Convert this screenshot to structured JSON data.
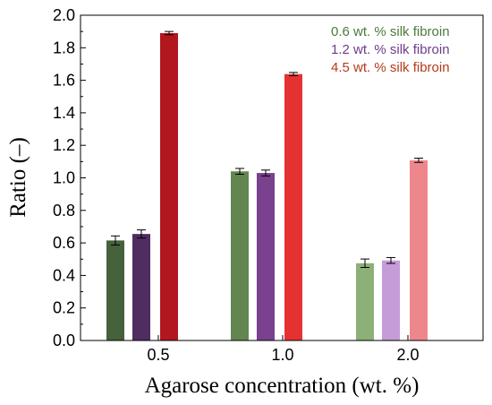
{
  "chart_data": {
    "type": "bar",
    "xlabel": "Agarose concentration (wt. %)",
    "ylabel": "Ratio (–)",
    "categories": [
      "0.5",
      "1.0",
      "2.0"
    ],
    "ylim": [
      0,
      2.0
    ],
    "yticks": [
      "0.0",
      "0.2",
      "0.4",
      "0.6",
      "0.8",
      "1.0",
      "1.2",
      "1.4",
      "1.6",
      "1.8",
      "2.0"
    ],
    "grid": false,
    "legend_position": "top-right",
    "series": [
      {
        "name": "0.6 wt. % silk fibroin",
        "legend_color": "#4c7a3c",
        "values": [
          0.615,
          1.04,
          0.475
        ],
        "errors": [
          0.028,
          0.018,
          0.026
        ],
        "colors": [
          "#45623a",
          "#62864f",
          "#8daf78"
        ]
      },
      {
        "name": "1.2 wt. % silk fibroin",
        "legend_color": "#6f3c8c",
        "values": [
          0.655,
          1.03,
          0.492
        ],
        "errors": [
          0.025,
          0.018,
          0.018
        ],
        "colors": [
          "#4f2d60",
          "#7a418f",
          "#c59bd8"
        ]
      },
      {
        "name": "4.5 wt. % silk fibroin",
        "legend_color": "#b53a1c",
        "values": [
          1.89,
          1.638,
          1.108
        ],
        "errors": [
          0.01,
          0.01,
          0.013
        ],
        "colors": [
          "#b2161e",
          "#e43232",
          "#ee878b"
        ]
      }
    ]
  }
}
